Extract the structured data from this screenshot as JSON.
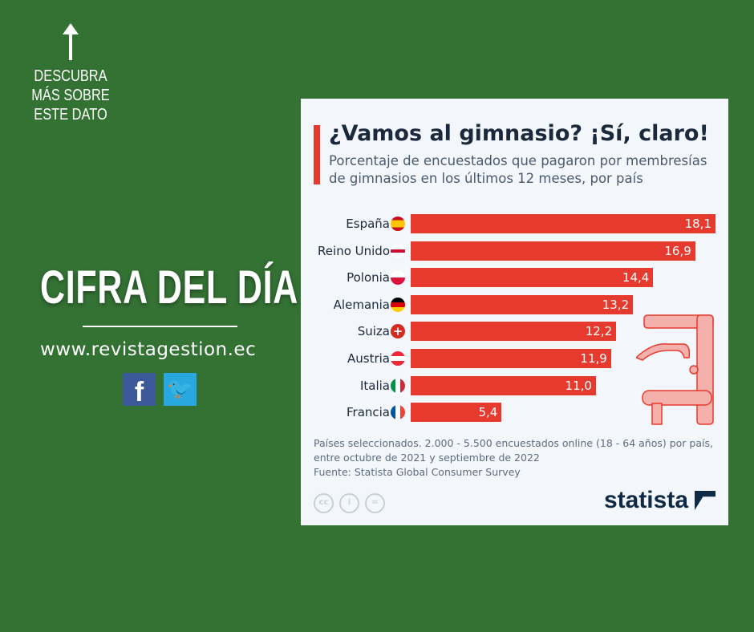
{
  "left": {
    "cta": "DESCUBRA MÁS SOBRE ESTE DATO",
    "headline": "CIFRA DEL DÍA",
    "url": "www.revistagestion.ec",
    "social": [
      "facebook-icon",
      "twitter-icon"
    ]
  },
  "card": {
    "title": "¿Vamos al gimnasio? ¡Sí, claro!",
    "subtitle": "Porcentaje de encuestados que pagaron por membresías de gimnasios en los últimos 12 meses, por país",
    "note": "Países seleccionados. 2.000 - 5.500 encuestados online (18 - 64 años) por país, entre octubre de 2021 y septiembre de 2022",
    "source": "Fuente: Statista Global Consumer Survey",
    "brand": "statista",
    "license_icons": [
      "cc",
      "by",
      "nd"
    ],
    "license_text": [
      "cc",
      "i",
      "="
    ]
  },
  "colors": {
    "background": "#347234",
    "bar": "#e63a2e",
    "card": "#f3f6fa"
  },
  "chart_data": {
    "type": "bar",
    "orientation": "horizontal",
    "title": "¿Vamos al gimnasio? ¡Sí, claro!",
    "categories": [
      "España",
      "Reino Unido",
      "Polonia",
      "Alemania",
      "Suiza",
      "Austria",
      "Italia",
      "Francia"
    ],
    "values": [
      18.1,
      16.9,
      14.4,
      13.2,
      12.2,
      11.9,
      11.0,
      5.4
    ],
    "value_labels": [
      "18,1",
      "16,9",
      "14,4",
      "13,2",
      "12,2",
      "11,9",
      "11,0",
      "5,4"
    ],
    "unit": "%",
    "xlim": [
      0,
      18.1
    ],
    "grid": false
  }
}
